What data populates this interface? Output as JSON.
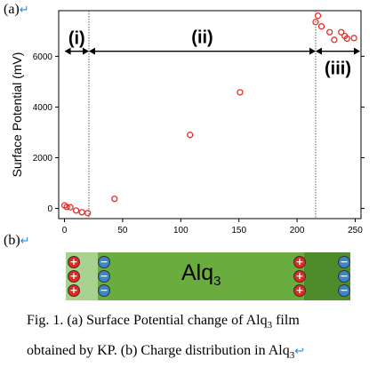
{
  "panel_a": {
    "label": "(a)",
    "return_mark": "↵"
  },
  "panel_b": {
    "label": "(b)",
    "return_mark": "↵"
  },
  "chart_data": {
    "type": "scatter",
    "title": "",
    "xlabel": "",
    "ylabel": "Surface Potential (mV)",
    "xlim": [
      -5,
      255
    ],
    "ylim": [
      -400,
      7800
    ],
    "xticks": [
      0,
      50,
      100,
      150,
      200,
      250
    ],
    "yticks": [
      0,
      2000,
      4000,
      6000
    ],
    "x": [
      0,
      2,
      5,
      10,
      15,
      20,
      43,
      108,
      151,
      216,
      218,
      221,
      228,
      232,
      238,
      241,
      243,
      249
    ],
    "y": [
      120,
      60,
      50,
      -80,
      -150,
      -180,
      380,
      2900,
      4580,
      7350,
      7600,
      7180,
      6950,
      6650,
      6950,
      6800,
      6700,
      6720
    ],
    "marker_color": "#e0312b",
    "region_boundaries": [
      21,
      216
    ],
    "regions": [
      {
        "label": "(i)",
        "from": 0,
        "to": 21
      },
      {
        "label": "(ii)",
        "from": 21,
        "to": 216
      },
      {
        "label": "(iii)",
        "from": 216,
        "to": 255
      }
    ]
  },
  "charge_strip": {
    "material_base": "Alq",
    "material_sub": "3",
    "colors": {
      "region_i": "#a9d190",
      "region_ii": "#6aad3e",
      "region_iii": "#4f8a2b",
      "plus": "#e02a1a",
      "minus": "#3b86c9"
    },
    "plus_symbol": "+",
    "minus_symbol": "−"
  },
  "caption": {
    "line1_a": "Fig. 1. (a) Surface Potential change of Alq",
    "line1_sub": "3",
    "line1_b": " film",
    "line2_a": "obtained by KP. (b) Charge distribution in Alq",
    "line2_sub": "3",
    "line2_mark": "↩"
  }
}
